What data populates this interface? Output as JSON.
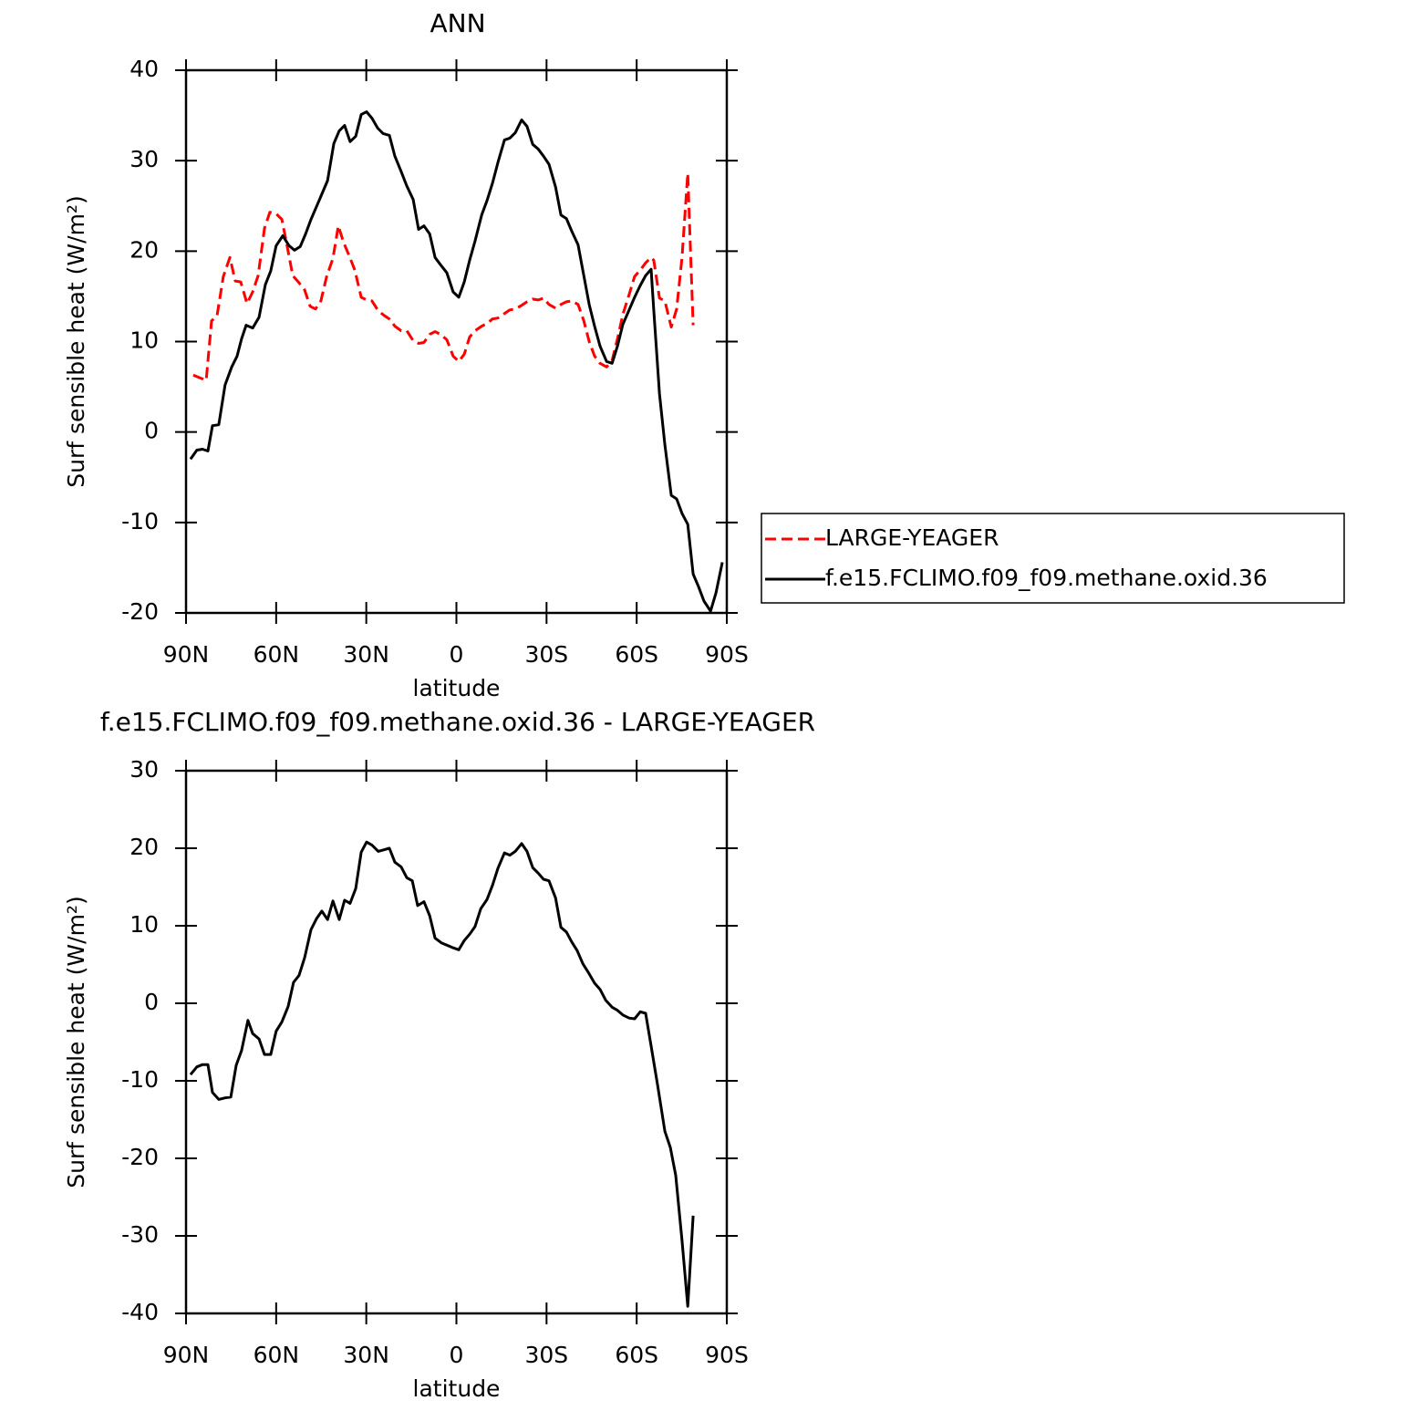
{
  "chart_data": [
    {
      "type": "line",
      "title": "ANN",
      "xlabel": "latitude",
      "ylabel": "Surf sensible heat (W/m²)",
      "xlim": [
        90,
        -90
      ],
      "xticks": [
        {
          "value": 90,
          "label": "90N"
        },
        {
          "value": 60,
          "label": "60N"
        },
        {
          "value": 30,
          "label": "30N"
        },
        0,
        {
          "value": -30,
          "label": "30S"
        },
        {
          "value": -60,
          "label": "60S"
        },
        {
          "value": -90,
          "label": "90S"
        }
      ],
      "ylim": [
        -20,
        40
      ],
      "yticks": [
        -20,
        -10,
        0,
        10,
        20,
        30,
        40
      ],
      "legend": "right",
      "series": [
        {
          "name": "LARGE-YEAGER",
          "color": "#ff0000",
          "line_style": "dashed",
          "x": [
            87.6,
            85.4,
            83.3,
            81.5,
            79.7,
            77.6,
            75.4,
            73.6,
            71.8,
            69.7,
            67.8,
            66,
            63.9,
            62.1,
            60.2,
            58.1,
            56.3,
            54.5,
            52.4,
            50.5,
            48.7,
            46.9,
            45.1,
            43.2,
            41.1,
            39.3,
            37.5,
            35.7,
            33.8,
            31.7,
            29.9,
            28.1,
            26,
            24.1,
            22.3,
            20.5,
            18.4,
            16.5,
            14.4,
            12.6,
            10.8,
            8.9,
            7.1,
            5.3,
            3.2,
            1.1,
            -0.8,
            -2.6,
            -4.4,
            -6.2,
            -8.4,
            -10.2,
            -12,
            -13.8,
            -16,
            -17.8,
            -19.6,
            -21.7,
            -23.5,
            -25.4,
            -27.2,
            -29,
            -30.8,
            -33,
            -34.8,
            -36.6,
            -38.4,
            -40.5,
            -42.4,
            -44.2,
            -46,
            -47.8,
            -50,
            -51.8,
            -53.6,
            -55.4,
            -57.5,
            -59.3,
            -61.2,
            -63,
            -64.8,
            -65.7,
            -67.6,
            -69.4,
            -71.5,
            -73.3,
            -75.1,
            -77,
            -78.8
          ],
          "values": [
            6.3,
            6,
            5.7,
            12.3,
            12.8,
            17.2,
            19.3,
            16.7,
            16.6,
            14.2,
            15.5,
            17.3,
            22.5,
            24.3,
            24.2,
            23.5,
            20.5,
            17.3,
            16.5,
            15.7,
            13.9,
            13.6,
            14.5,
            17.2,
            19.2,
            22.8,
            20.9,
            19.5,
            17.9,
            14.9,
            14.6,
            14.5,
            13.4,
            12.9,
            12.5,
            11.7,
            11.2,
            11.2,
            10.1,
            9.8,
            9.9,
            10.8,
            11.1,
            10.8,
            10.2,
            8.4,
            7.8,
            8.6,
            10.5,
            11.2,
            11.7,
            12,
            12.5,
            12.6,
            13.1,
            13.5,
            13.6,
            14,
            14.4,
            14.7,
            14.6,
            14.8,
            14.1,
            13.7,
            14.1,
            14.4,
            14.5,
            14.1,
            12.3,
            10,
            8.4,
            7.6,
            7.2,
            7.9,
            10.3,
            13,
            15.2,
            17.2,
            17.9,
            18.7,
            19.3,
            19,
            14.8,
            14.5,
            11.6,
            13.6,
            19.3,
            28.6,
            11.8
          ]
        },
        {
          "name": "f.e15.FCLIMO.f09_f09.methane.oxid.36",
          "color": "#000000",
          "line_style": "solid",
          "x": [
            88.5,
            86.4,
            84.5,
            82.7,
            81.2,
            79.1,
            77,
            74.8,
            73,
            71.5,
            70,
            67.8,
            65.7,
            63.6,
            61.8,
            60,
            57.8,
            55.7,
            53.9,
            52,
            50.2,
            48.4,
            46.6,
            44.8,
            42.9,
            40.8,
            39,
            37.2,
            35.4,
            33.5,
            31.7,
            29.9,
            28.1,
            26.2,
            24.4,
            22.3,
            20.5,
            18.4,
            16.5,
            14.4,
            12.6,
            10.8,
            8.9,
            7.1,
            5.3,
            3.2,
            1.1,
            -0.8,
            -2.6,
            -4.4,
            -6.2,
            -8.4,
            -10.2,
            -12,
            -13.8,
            -16,
            -17.8,
            -19.6,
            -21.7,
            -23.5,
            -25.4,
            -27.2,
            -29,
            -30.8,
            -33,
            -34.8,
            -36.6,
            -38.4,
            -40.5,
            -42.4,
            -44.2,
            -46,
            -47.8,
            -50,
            -51.8,
            -53.6,
            -55.4,
            -57.5,
            -59.3,
            -61.2,
            -63,
            -64.8,
            -65.7,
            -67.6,
            -69.4,
            -71.5,
            -73.3,
            -75.1,
            -77,
            -78.8,
            -80.6,
            -82.4,
            -84.6,
            -86.4,
            -88.5
          ],
          "values": [
            -3,
            -2,
            -1.9,
            -2.1,
            0.7,
            0.8,
            5.2,
            7.2,
            8.4,
            10.3,
            11.8,
            11.5,
            12.7,
            16.3,
            17.8,
            20.6,
            21.7,
            20.6,
            20.1,
            20.5,
            21.9,
            23.5,
            24.9,
            26.3,
            27.8,
            31.9,
            33.3,
            33.9,
            32.1,
            32.7,
            35.1,
            35.4,
            34.7,
            33.6,
            33,
            32.8,
            30.5,
            28.8,
            27.2,
            25.7,
            22.4,
            22.8,
            21.9,
            19.3,
            18.5,
            17.6,
            15.5,
            14.9,
            16.6,
            19,
            21.1,
            24,
            25.6,
            27.5,
            29.8,
            32.3,
            32.5,
            33.1,
            34.5,
            33.8,
            31.8,
            31.3,
            30.5,
            29.6,
            27.1,
            24,
            23.6,
            22.2,
            20.7,
            17.3,
            14.1,
            11.7,
            9.5,
            7.8,
            7.6,
            9.5,
            11.9,
            13.5,
            14.9,
            16.2,
            17.3,
            18,
            13.5,
            4.2,
            -1.4,
            -7,
            -7.4,
            -9,
            -10.2,
            -15.7,
            -17.1,
            -18.7,
            -19.8,
            -17.8,
            -14.4
          ]
        }
      ]
    },
    {
      "type": "line",
      "title": "f.e15.FCLIMO.f09_f09.methane.oxid.36 - LARGE-YEAGER",
      "xlabel": "latitude",
      "ylabel": "Surf sensible heat (W/m²)",
      "xlim": [
        90,
        -90
      ],
      "xticks": [
        {
          "value": 90,
          "label": "90N"
        },
        {
          "value": 60,
          "label": "60N"
        },
        {
          "value": 30,
          "label": "30N"
        },
        0,
        {
          "value": -30,
          "label": "30S"
        },
        {
          "value": -60,
          "label": "60S"
        },
        {
          "value": -90,
          "label": "90S"
        }
      ],
      "ylim": [
        -40,
        30
      ],
      "yticks": [
        -40,
        -30,
        -20,
        -10,
        0,
        10,
        20,
        30
      ],
      "series": [
        {
          "color": "#000000",
          "line_style": "solid",
          "x": [
            88.5,
            86.4,
            84.5,
            82.7,
            81.2,
            79.1,
            77,
            75.1,
            73.3,
            71.5,
            69.4,
            67.8,
            65.7,
            63.9,
            61.8,
            60,
            58.1,
            56,
            54.2,
            52.4,
            50.5,
            48.4,
            46.6,
            44.8,
            42.9,
            41.1,
            39,
            37.2,
            35.4,
            33.5,
            31.7,
            29.9,
            28.1,
            26,
            24.1,
            22.3,
            20.5,
            18.4,
            16.5,
            14.7,
            12.9,
            10.8,
            8.9,
            7.1,
            5,
            3.2,
            1.4,
            -0.8,
            -2.6,
            -4.4,
            -6.2,
            -8.1,
            -10.2,
            -12,
            -13.8,
            -16,
            -17.8,
            -19.6,
            -21.7,
            -23.5,
            -25.4,
            -27.2,
            -29,
            -30.8,
            -33,
            -34.8,
            -36.6,
            -38.4,
            -40.2,
            -42.1,
            -44.2,
            -46,
            -47.8,
            -49.7,
            -51.8,
            -53.6,
            -55.4,
            -57.5,
            -59.3,
            -61.2,
            -63,
            -64.8,
            -66.9,
            -69.4,
            -71.2,
            -73,
            -75.1,
            -77,
            -78.8
          ],
          "values": [
            -9.2,
            -8.2,
            -7.9,
            -7.9,
            -11.5,
            -12.4,
            -12.2,
            -12.1,
            -8,
            -6.1,
            -2.2,
            -3.9,
            -4.6,
            -6.6,
            -6.6,
            -3.6,
            -2.4,
            -0.4,
            2.7,
            3.6,
            5.9,
            9.5,
            10.9,
            11.9,
            10.8,
            13.2,
            10.8,
            13.3,
            12.9,
            14.8,
            19.5,
            20.8,
            20.4,
            19.6,
            19.8,
            20,
            18.2,
            17.6,
            16.2,
            15.8,
            12.6,
            13.1,
            11.3,
            8.4,
            7.8,
            7.5,
            7.2,
            6.9,
            8.1,
            8.9,
            9.9,
            12.2,
            13.4,
            15.2,
            17.4,
            19.4,
            19.1,
            19.6,
            20.6,
            19.6,
            17.5,
            16.8,
            16,
            15.8,
            13.6,
            9.8,
            9.2,
            7.9,
            6.8,
            5.1,
            3.8,
            2.6,
            1.8,
            0.4,
            -0.5,
            -0.9,
            -1.5,
            -1.9,
            -2,
            -1.1,
            -1.3,
            -5.5,
            -10.4,
            -16.5,
            -18.6,
            -22.2,
            -30.6,
            -39.1,
            -27.4
          ]
        }
      ]
    }
  ]
}
